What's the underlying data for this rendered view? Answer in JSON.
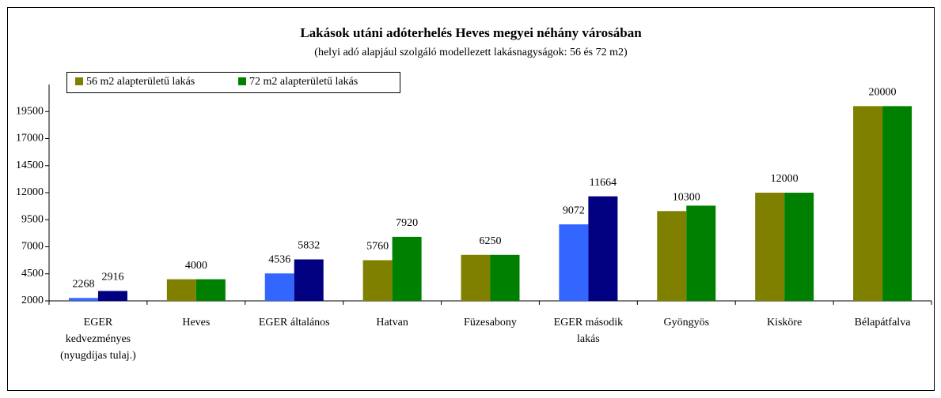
{
  "chart_data": {
    "type": "bar",
    "title": "Lakások utáni adóterhelés Heves megyei néhány városában",
    "subtitle": "(helyi adó alapjául szolgáló modellezett lakásnagyságok: 56 és 72 m2)",
    "categories": [
      "EGER kedvezményes (nyugdíjas tulaj.)",
      "Heves",
      "EGER általános",
      "Hatvan",
      "Füzesabony",
      "EGER második lakás",
      "Gyöngyös",
      "Kisköre",
      "Bélapátfalva"
    ],
    "series": [
      {
        "name": "56 m2 alapterületű lakás",
        "color": "#808000",
        "colors": [
          "#3366ff",
          "#808000",
          "#3366ff",
          "#808000",
          "#808000",
          "#3366ff",
          "#808000",
          "#808000",
          "#808000"
        ],
        "values": [
          2268,
          4000,
          4536,
          5760,
          6250,
          9072,
          10300,
          12000,
          20000
        ]
      },
      {
        "name": "72 m2 alapterületű lakás",
        "color": "#008000",
        "colors": [
          "#000080",
          "#008000",
          "#000080",
          "#008000",
          "#008000",
          "#000080",
          "#008000",
          "#008000",
          "#008000"
        ],
        "values": [
          2916,
          4000,
          5832,
          7920,
          6250,
          11664,
          10800,
          12000,
          20000
        ],
        "value_labels": [
          "2916",
          null,
          "5832",
          "7920",
          null,
          "11664",
          null,
          null,
          null
        ]
      }
    ],
    "ylim": [
      2000,
      22000
    ],
    "yticks": [
      2000,
      4500,
      7000,
      9500,
      12000,
      14500,
      17000,
      19500
    ],
    "legend": "top-left"
  }
}
